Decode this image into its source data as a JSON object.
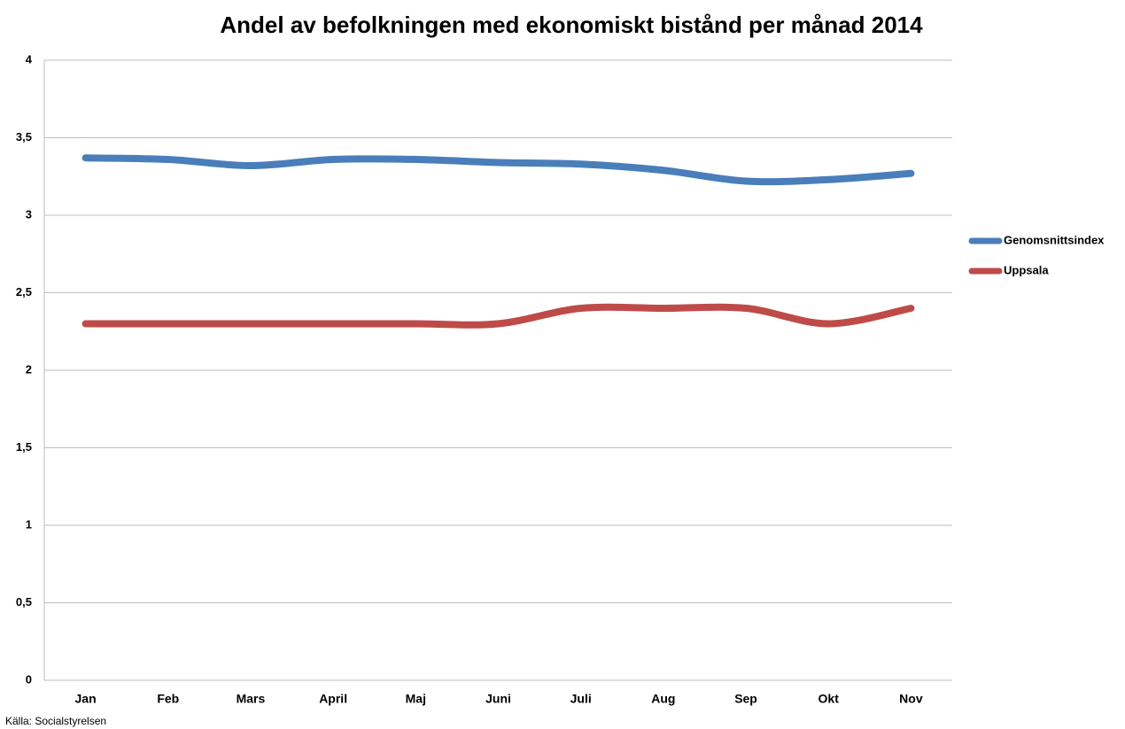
{
  "chart_data": {
    "type": "line",
    "title": "Andel av befolkningen med ekonomiskt bistånd per månad 2014",
    "source": "Källa: Socialstyrelsen",
    "categories": [
      "Jan",
      "Feb",
      "Mars",
      "April",
      "Maj",
      "Juni",
      "Juli",
      "Aug",
      "Sep",
      "Okt",
      "Nov"
    ],
    "series": [
      {
        "name": "Genomsnittsindex",
        "color": "#4a7ebb",
        "values": [
          3.37,
          3.36,
          3.32,
          3.36,
          3.36,
          3.34,
          3.33,
          3.29,
          3.22,
          3.23,
          3.27
        ]
      },
      {
        "name": "Uppsala",
        "color": "#be4b48",
        "values": [
          2.3,
          2.3,
          2.3,
          2.3,
          2.3,
          2.3,
          2.4,
          2.4,
          2.4,
          2.3,
          2.4
        ]
      }
    ],
    "ylim": [
      0,
      4
    ],
    "yticks": [
      0,
      {
        "value": 0.5,
        "label": "0,5"
      },
      1,
      {
        "value": 1.5,
        "label": "1,5"
      },
      2,
      {
        "value": 2.5,
        "label": "2,5"
      },
      3,
      {
        "value": 3.5,
        "label": "3,5"
      },
      4
    ],
    "grid": true,
    "smooth": true,
    "legend": "right"
  }
}
